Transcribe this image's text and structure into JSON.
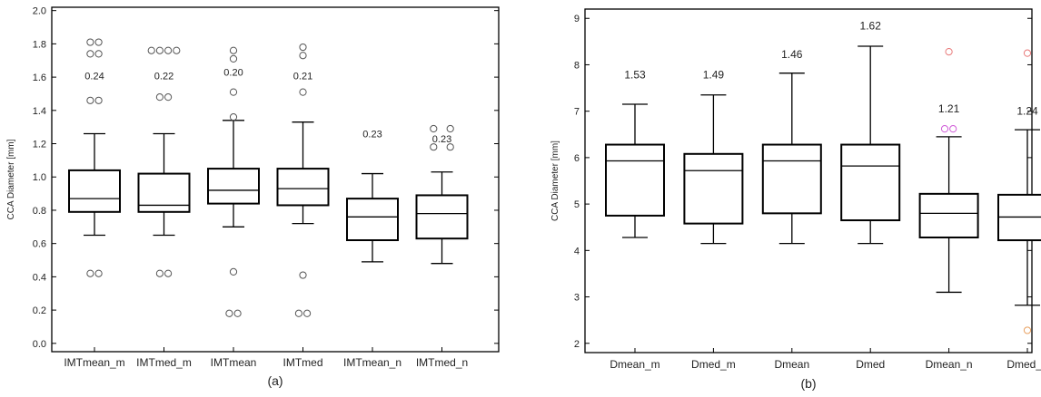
{
  "chart_data": [
    {
      "type": "box",
      "panel_label": "(a)",
      "ylabel": "CCA Diameter [mm]",
      "ylim": [
        -0.05,
        2.02
      ],
      "yticks": [
        "0.0",
        "0.2",
        "0.4",
        "0.6",
        "0.8",
        "1.0",
        "1.2",
        "1.4",
        "1.6",
        "1.8",
        "2.0"
      ],
      "categories": [
        "IMTmean_m",
        "IMTmed_m",
        "IMTmean",
        "IMTmed",
        "IMTmean_n",
        "IMTmed_n"
      ],
      "boxes": [
        {
          "whisker_low": 0.65,
          "q1": 0.79,
          "median": 0.87,
          "q3": 1.04,
          "whisker_high": 1.26,
          "annotation": "0.24",
          "annotation_y": 1.61,
          "outliers": [
            [
              -1,
              0.42
            ],
            [
              1,
              0.42
            ],
            [
              -1,
              1.46
            ],
            [
              1,
              1.46
            ],
            [
              -1,
              1.74
            ],
            [
              1,
              1.74
            ],
            [
              -1,
              1.81
            ],
            [
              1,
              1.81
            ]
          ]
        },
        {
          "whisker_low": 0.65,
          "q1": 0.79,
          "median": 0.83,
          "q3": 1.02,
          "whisker_high": 1.26,
          "annotation": "0.22",
          "annotation_y": 1.61,
          "outliers": [
            [
              -1,
              0.42
            ],
            [
              1,
              0.42
            ],
            [
              -1,
              1.48
            ],
            [
              1,
              1.48
            ],
            [
              -3,
              1.76
            ],
            [
              -1,
              1.76
            ],
            [
              1,
              1.76
            ],
            [
              3,
              1.76
            ]
          ]
        },
        {
          "whisker_low": 0.7,
          "q1": 0.84,
          "median": 0.92,
          "q3": 1.05,
          "whisker_high": 1.34,
          "annotation": "0.20",
          "annotation_y": 1.63,
          "outliers": [
            [
              -1,
              0.18
            ],
            [
              1,
              0.18
            ],
            [
              0,
              0.43
            ],
            [
              0,
              1.36
            ],
            [
              0,
              1.51
            ],
            [
              0,
              1.71
            ],
            [
              0,
              1.76
            ]
          ]
        },
        {
          "whisker_low": 0.72,
          "q1": 0.83,
          "median": 0.93,
          "q3": 1.05,
          "whisker_high": 1.33,
          "annotation": "0.21",
          "annotation_y": 1.61,
          "outliers": [
            [
              -1,
              0.18
            ],
            [
              1,
              0.18
            ],
            [
              0,
              0.41
            ],
            [
              0,
              1.51
            ],
            [
              0,
              1.73
            ],
            [
              0,
              1.78
            ]
          ]
        },
        {
          "whisker_low": 0.49,
          "q1": 0.62,
          "median": 0.76,
          "q3": 0.87,
          "whisker_high": 1.02,
          "annotation": "0.23",
          "annotation_y": 1.26,
          "outliers": []
        },
        {
          "whisker_low": 0.48,
          "q1": 0.63,
          "median": 0.78,
          "q3": 0.89,
          "whisker_high": 1.03,
          "annotation": "0.23",
          "annotation_y": 1.23,
          "outliers": [
            [
              -2,
              1.18
            ],
            [
              2,
              1.18
            ],
            [
              -2,
              1.29
            ],
            [
              2,
              1.29
            ]
          ]
        }
      ]
    },
    {
      "type": "box",
      "panel_label": "(b)",
      "ylabel": "CCA Diameter [mm]",
      "ylim": [
        1.8,
        9.2
      ],
      "yticks": [
        "2",
        "3",
        "4",
        "5",
        "6",
        "7",
        "8",
        "9"
      ],
      "categories": [
        "Dmean_m",
        "Dmed_m",
        "Dmean",
        "Dmed",
        "Dmean_n",
        "Dmed_n"
      ],
      "boxes": [
        {
          "whisker_low": 4.28,
          "q1": 4.75,
          "median": 5.93,
          "q3": 6.28,
          "whisker_high": 7.15,
          "annotation": "1.53",
          "annotation_y": 7.78,
          "outliers": []
        },
        {
          "whisker_low": 4.15,
          "q1": 4.58,
          "median": 5.72,
          "q3": 6.08,
          "whisker_high": 7.35,
          "annotation": "1.49",
          "annotation_y": 7.78,
          "outliers": []
        },
        {
          "whisker_low": 4.15,
          "q1": 4.8,
          "median": 5.93,
          "q3": 6.28,
          "whisker_high": 7.82,
          "annotation": "1.46",
          "annotation_y": 8.22,
          "outliers": []
        },
        {
          "whisker_low": 4.15,
          "q1": 4.65,
          "median": 5.82,
          "q3": 6.28,
          "whisker_high": 8.4,
          "annotation": "1.62",
          "annotation_y": 8.84,
          "outliers": []
        },
        {
          "whisker_low": 3.1,
          "q1": 4.28,
          "median": 4.8,
          "q3": 5.22,
          "whisker_high": 6.45,
          "annotation": "1.21",
          "annotation_y": 7.05,
          "outliers": [
            [
              -1,
              6.62,
              "#d05ad8"
            ],
            [
              1,
              6.62,
              "#d05ad8"
            ],
            [
              0,
              8.28,
              "#e87878"
            ]
          ]
        },
        {
          "whisker_low": 2.82,
          "q1": 4.22,
          "median": 4.72,
          "q3": 5.2,
          "whisker_high": 6.6,
          "annotation": "1.24",
          "annotation_y": 7.0,
          "outliers": [
            [
              0,
              8.25,
              "#e87878"
            ],
            [
              0,
              2.28,
              "#e8a060"
            ]
          ]
        }
      ]
    }
  ]
}
